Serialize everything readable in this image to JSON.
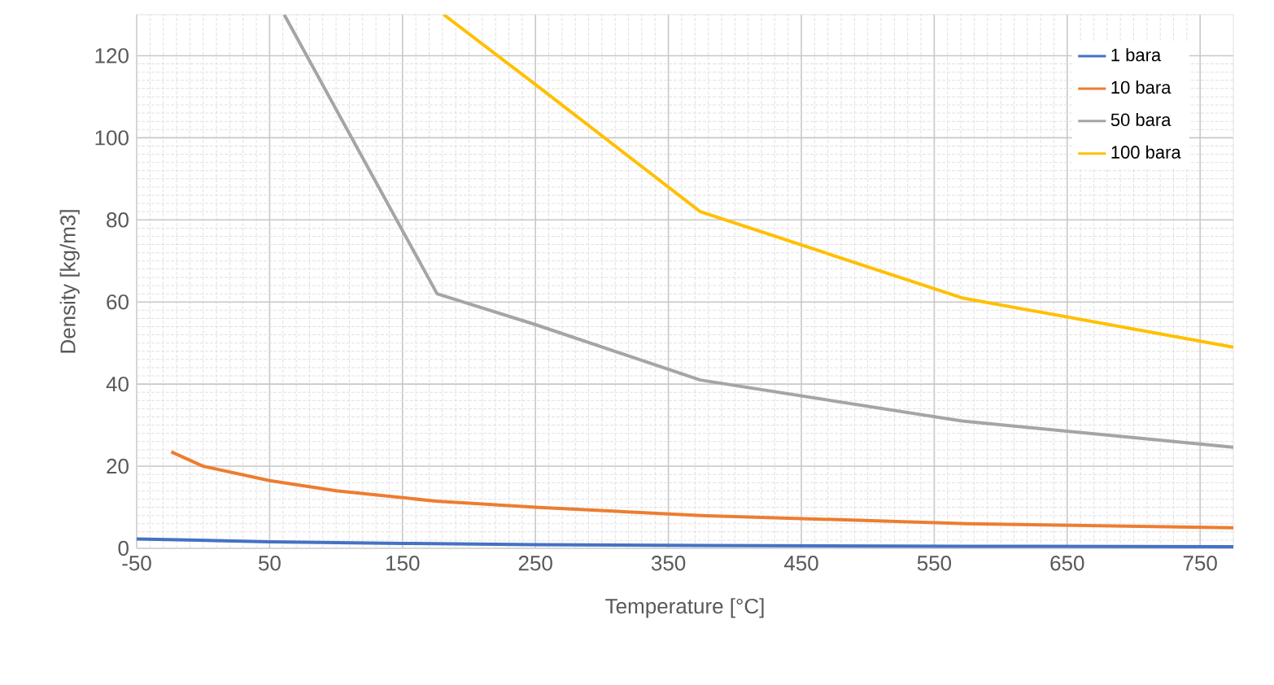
{
  "chart_data": {
    "type": "line",
    "xlabel": "Temperature [°C]",
    "ylabel": "Density [kg/m3]",
    "xlim": [
      -50,
      775
    ],
    "ylim": [
      0,
      130
    ],
    "xticks": [
      -50,
      50,
      150,
      250,
      350,
      450,
      550,
      650,
      750
    ],
    "yticks": [
      0,
      20,
      40,
      60,
      80,
      100,
      120
    ],
    "grid": true,
    "legend": "top right",
    "marker": "none",
    "line_style": "solid",
    "series": [
      {
        "name": "1 bara",
        "color": "#4472c4",
        "x": [
          -50,
          50,
          150,
          250,
          375,
          575,
          775
        ],
        "values": [
          2.3,
          1.6,
          1.2,
          0.9,
          0.7,
          0.5,
          0.4
        ]
      },
      {
        "name": "10 bara",
        "color": "#ed7d31",
        "x": [
          -24,
          0,
          50,
          100,
          175,
          250,
          375,
          575,
          775
        ],
        "values": [
          23.5,
          20,
          16.5,
          14,
          11.5,
          10,
          8,
          6,
          5
        ]
      },
      {
        "name": "50 bara",
        "color": "#a5a5a5",
        "x": [
          61,
          176,
          250,
          374,
          571,
          775
        ],
        "values": [
          130,
          62,
          54.5,
          41,
          31,
          24.6
        ]
      },
      {
        "name": "100 bara",
        "color": "#ffc000",
        "x": [
          181,
          250,
          374,
          571,
          775
        ],
        "values": [
          130,
          113,
          82,
          61,
          49
        ]
      }
    ]
  }
}
